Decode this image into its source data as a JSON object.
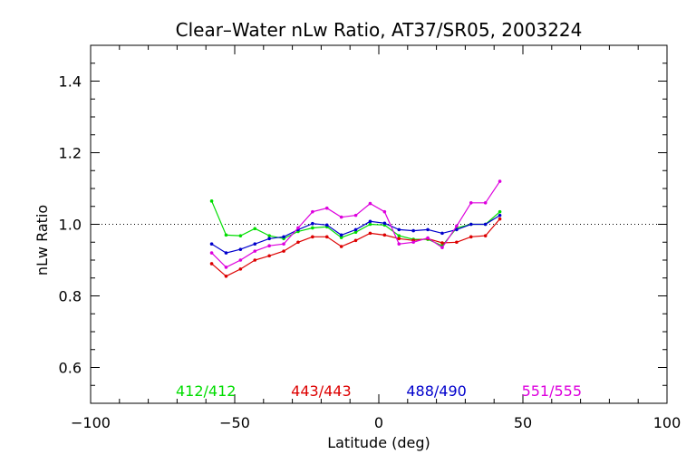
{
  "chart_data": {
    "type": "line",
    "title": "Clear–Water nLw Ratio, AT37/SR05, 2003224",
    "xlabel": "Latitude (deg)",
    "ylabel": "nLw Ratio",
    "xlim": [
      -100,
      100
    ],
    "ylim": [
      0.5,
      1.5
    ],
    "xticks": [
      -100,
      -50,
      0,
      50,
      100
    ],
    "xtick_labels": [
      "−100",
      "−50",
      "0",
      "50",
      "100"
    ],
    "yticks": [
      0.6,
      0.8,
      1.0,
      1.2,
      1.4
    ],
    "ytick_labels": [
      "0.6",
      "0.8",
      "1.0",
      "1.2",
      "1.4"
    ],
    "reference_line": {
      "y": 1.0,
      "style": "dotted"
    },
    "x": [
      -58,
      -53,
      -48,
      -43,
      -38,
      -33,
      -28,
      -23,
      -18,
      -13,
      -8,
      -3,
      2,
      7,
      12,
      17,
      22,
      27,
      32,
      37,
      42
    ],
    "series": [
      {
        "name": "412/412",
        "color": "#00dd00",
        "values": [
          1.065,
          0.97,
          0.968,
          0.988,
          0.968,
          0.96,
          0.98,
          0.99,
          0.993,
          0.963,
          0.978,
          1.0,
          0.998,
          0.968,
          0.958,
          0.958,
          0.94,
          0.99,
          1.0,
          1.0,
          1.035
        ]
      },
      {
        "name": "443/443",
        "color": "#dd0000",
        "values": [
          0.89,
          0.855,
          0.875,
          0.9,
          0.912,
          0.925,
          0.95,
          0.965,
          0.965,
          0.938,
          0.955,
          0.975,
          0.97,
          0.96,
          0.955,
          0.96,
          0.948,
          0.95,
          0.965,
          0.968,
          1.015
        ]
      },
      {
        "name": "488/490",
        "color": "#0000cc",
        "values": [
          0.945,
          0.92,
          0.93,
          0.945,
          0.96,
          0.965,
          0.985,
          1.002,
          0.998,
          0.97,
          0.985,
          1.008,
          1.003,
          0.985,
          0.982,
          0.985,
          0.975,
          0.985,
          1.0,
          1.0,
          1.025
        ]
      },
      {
        "name": "551/555",
        "color": "#dd00dd",
        "values": [
          0.92,
          0.88,
          0.9,
          0.925,
          0.94,
          0.945,
          0.99,
          1.035,
          1.045,
          1.02,
          1.025,
          1.058,
          1.035,
          0.945,
          0.95,
          0.962,
          0.935,
          0.995,
          1.06,
          1.06,
          1.12
        ]
      }
    ],
    "grid": false,
    "legend": "bottom, inside plot"
  }
}
